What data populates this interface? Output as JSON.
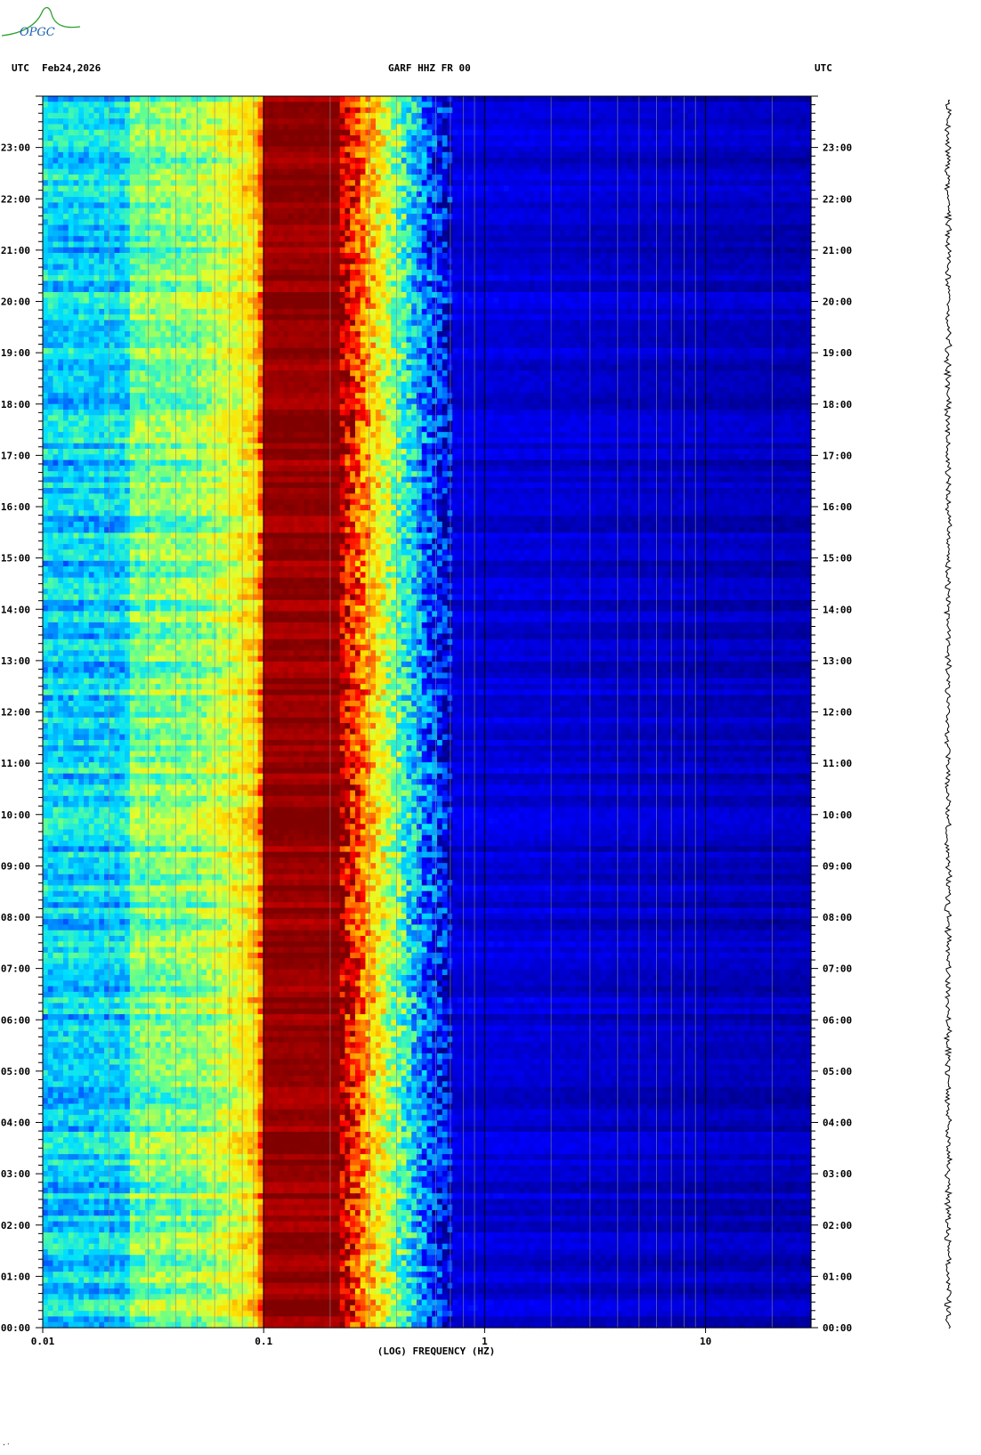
{
  "logo": {
    "text": "OPGC",
    "color": "#1a5fb4",
    "accent": "#2ca02c"
  },
  "header": {
    "left_tz": "UTC",
    "date": "Feb24,2026",
    "station": "GARF HHZ FR 00",
    "right_tz": "UTC"
  },
  "footer_mark": "·ˑ",
  "chart_data": {
    "type": "heatmap",
    "title": "GARF HHZ FR 00",
    "xlabel": "(LOG) FREQUENCY (HZ)",
    "ylabel": "",
    "x_scale": "log",
    "xlim": [
      0.01,
      30
    ],
    "ylim_hours": [
      0,
      24
    ],
    "x_ticks": [
      {
        "value": 0.01,
        "label": "0.01"
      },
      {
        "value": 0.1,
        "label": "0.1"
      },
      {
        "value": 1,
        "label": "1"
      },
      {
        "value": 10,
        "label": "10"
      }
    ],
    "gridlines_hz": [
      0.02,
      0.03,
      0.04,
      0.05,
      0.06,
      0.07,
      0.08,
      0.09,
      0.1,
      0.2,
      0.3,
      0.4,
      0.5,
      0.6,
      0.7,
      0.8,
      0.9,
      1,
      2,
      3,
      4,
      5,
      6,
      7,
      8,
      9,
      10,
      20
    ],
    "y_ticks": [
      "00:00",
      "01:00",
      "02:00",
      "03:00",
      "04:00",
      "05:00",
      "06:00",
      "07:00",
      "08:00",
      "09:00",
      "10:00",
      "11:00",
      "12:00",
      "13:00",
      "14:00",
      "15:00",
      "16:00",
      "17:00",
      "18:00",
      "19:00",
      "20:00",
      "21:00",
      "22:00",
      "23:00"
    ],
    "colormap": [
      "#00008b",
      "#0000ff",
      "#0080ff",
      "#00e0ff",
      "#60ff90",
      "#e0ff30",
      "#ffe000",
      "#ff8000",
      "#ff0000",
      "#800000"
    ],
    "band_profile": [
      {
        "hz": 0.01,
        "level": 0.32
      },
      {
        "hz": 0.024,
        "level": 0.32
      },
      {
        "hz": 0.025,
        "level": 0.45
      },
      {
        "hz": 0.05,
        "level": 0.48
      },
      {
        "hz": 0.075,
        "level": 0.58
      },
      {
        "hz": 0.095,
        "level": 0.68
      },
      {
        "hz": 0.1,
        "level": 0.98
      },
      {
        "hz": 0.22,
        "level": 0.98
      },
      {
        "hz": 0.27,
        "level": 0.82
      },
      {
        "hz": 0.33,
        "level": 0.62
      },
      {
        "hz": 0.42,
        "level": 0.42
      },
      {
        "hz": 0.55,
        "level": 0.2
      },
      {
        "hz": 0.7,
        "level": 0.08
      },
      {
        "hz": 30,
        "level": 0.04
      }
    ],
    "grid": true
  }
}
